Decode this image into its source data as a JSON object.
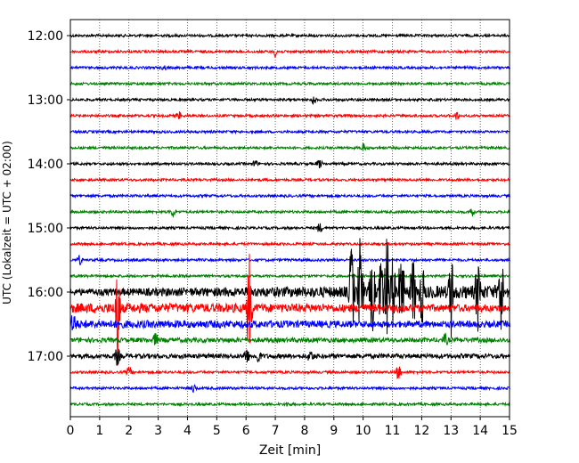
{
  "chart_data": {
    "type": "line",
    "title": "",
    "xlabel": "Zeit  [min]",
    "ylabel": "UTC (Lokalzeit = UTC + 02:00)",
    "xlim": [
      0,
      15
    ],
    "x_ticks": [
      "0",
      "1",
      "2",
      "3",
      "4",
      "5",
      "6",
      "7",
      "8",
      "9",
      "10",
      "11",
      "12",
      "13",
      "14",
      "15"
    ],
    "y_tick_labels": [
      "12:00",
      "13:00",
      "14:00",
      "15:00",
      "16:00",
      "17:00"
    ],
    "grid": "vertical dotted",
    "start_time": "12:00",
    "row_interval_minutes": 15,
    "row_colors": [
      "#000000",
      "#ff0000",
      "#0000ff",
      "#008000"
    ],
    "rows": [
      {
        "time": "12:00",
        "color": "#000000",
        "activity": "low"
      },
      {
        "time": "12:15",
        "color": "#ff0000",
        "activity": "low"
      },
      {
        "time": "12:30",
        "color": "#0000ff",
        "activity": "low"
      },
      {
        "time": "12:45",
        "color": "#008000",
        "activity": "low"
      },
      {
        "time": "13:00",
        "color": "#000000",
        "activity": "low"
      },
      {
        "time": "13:15",
        "color": "#ff0000",
        "activity": "low"
      },
      {
        "time": "13:30",
        "color": "#0000ff",
        "activity": "low"
      },
      {
        "time": "13:45",
        "color": "#008000",
        "activity": "low"
      },
      {
        "time": "14:00",
        "color": "#000000",
        "activity": "low"
      },
      {
        "time": "14:15",
        "color": "#ff0000",
        "activity": "low"
      },
      {
        "time": "14:30",
        "color": "#0000ff",
        "activity": "low"
      },
      {
        "time": "14:45",
        "color": "#008000",
        "activity": "low"
      },
      {
        "time": "15:00",
        "color": "#000000",
        "activity": "low"
      },
      {
        "time": "15:15",
        "color": "#ff0000",
        "activity": "low"
      },
      {
        "time": "15:30",
        "color": "#0000ff",
        "activity": "low"
      },
      {
        "time": "15:45",
        "color": "#008000",
        "activity": "low"
      },
      {
        "time": "16:00",
        "color": "#000000",
        "activity": "high"
      },
      {
        "time": "16:15",
        "color": "#ff0000",
        "activity": "high"
      },
      {
        "time": "16:30",
        "color": "#0000ff",
        "activity": "high"
      },
      {
        "time": "16:45",
        "color": "#008000",
        "activity": "medium"
      },
      {
        "time": "17:00",
        "color": "#000000",
        "activity": "medium"
      },
      {
        "time": "17:15",
        "color": "#ff0000",
        "activity": "low"
      },
      {
        "time": "17:30",
        "color": "#0000ff",
        "activity": "low"
      },
      {
        "time": "17:45",
        "color": "#008000",
        "activity": "low"
      }
    ],
    "events": [
      {
        "row": "12:15",
        "minute": 7.0,
        "amp": 0.35
      },
      {
        "row": "12:30",
        "minute": 3.2,
        "amp": 0.15
      },
      {
        "row": "13:00",
        "minute": 8.3,
        "amp": 0.35
      },
      {
        "row": "13:15",
        "minute": 3.7,
        "amp": 0.25
      },
      {
        "row": "13:15",
        "minute": 13.2,
        "amp": 0.3
      },
      {
        "row": "13:45",
        "minute": 10.0,
        "amp": 0.3
      },
      {
        "row": "14:00",
        "minute": 6.3,
        "amp": 0.3
      },
      {
        "row": "14:00",
        "minute": 8.5,
        "amp": 0.3
      },
      {
        "row": "14:45",
        "minute": 3.5,
        "amp": 0.35
      },
      {
        "row": "14:45",
        "minute": 13.7,
        "amp": 0.35
      },
      {
        "row": "15:00",
        "minute": 8.5,
        "amp": 0.35
      },
      {
        "row": "15:30",
        "minute": 0.3,
        "amp": 0.35
      },
      {
        "row": "16:15",
        "minute": 1.6,
        "amp": 4.2
      },
      {
        "row": "16:15",
        "minute": 6.1,
        "amp": 4.0
      },
      {
        "row": "16:30",
        "minute": 0.1,
        "amp": 0.8
      },
      {
        "row": "16:45",
        "minute": 2.9,
        "amp": 0.4
      },
      {
        "row": "16:45",
        "minute": 12.8,
        "amp": 0.4
      },
      {
        "row": "17:00",
        "minute": 1.6,
        "amp": 0.6
      },
      {
        "row": "17:00",
        "minute": 6.0,
        "amp": 0.6
      },
      {
        "row": "17:00",
        "minute": 6.4,
        "amp": 0.5
      },
      {
        "row": "17:00",
        "minute": 8.2,
        "amp": 0.4
      },
      {
        "row": "17:15",
        "minute": 2.0,
        "amp": 0.4
      },
      {
        "row": "17:15",
        "minute": 11.2,
        "amp": 0.5
      },
      {
        "row": "17:30",
        "minute": 4.2,
        "amp": 0.3
      },
      {
        "row": "17:45",
        "minute": 7.4,
        "amp": 0.15
      },
      {
        "row": "16:00",
        "minute": 9.6,
        "amp": 3.5
      },
      {
        "row": "16:00",
        "minute": 9.9,
        "amp": 4.0
      },
      {
        "row": "16:00",
        "minute": 10.3,
        "amp": 3.0
      },
      {
        "row": "16:00",
        "minute": 10.6,
        "amp": 3.5
      },
      {
        "row": "16:00",
        "minute": 10.8,
        "amp": 4.0
      },
      {
        "row": "16:00",
        "minute": 11.0,
        "amp": 2.5
      },
      {
        "row": "16:00",
        "minute": 11.3,
        "amp": 3.2
      },
      {
        "row": "16:00",
        "minute": 11.7,
        "amp": 2.5
      },
      {
        "row": "16:00",
        "minute": 12.0,
        "amp": 2.2
      },
      {
        "row": "16:00",
        "minute": 13.0,
        "amp": 3.0
      },
      {
        "row": "16:00",
        "minute": 13.9,
        "amp": 2.5
      },
      {
        "row": "16:00",
        "minute": 14.7,
        "amp": 2.8
      }
    ]
  }
}
